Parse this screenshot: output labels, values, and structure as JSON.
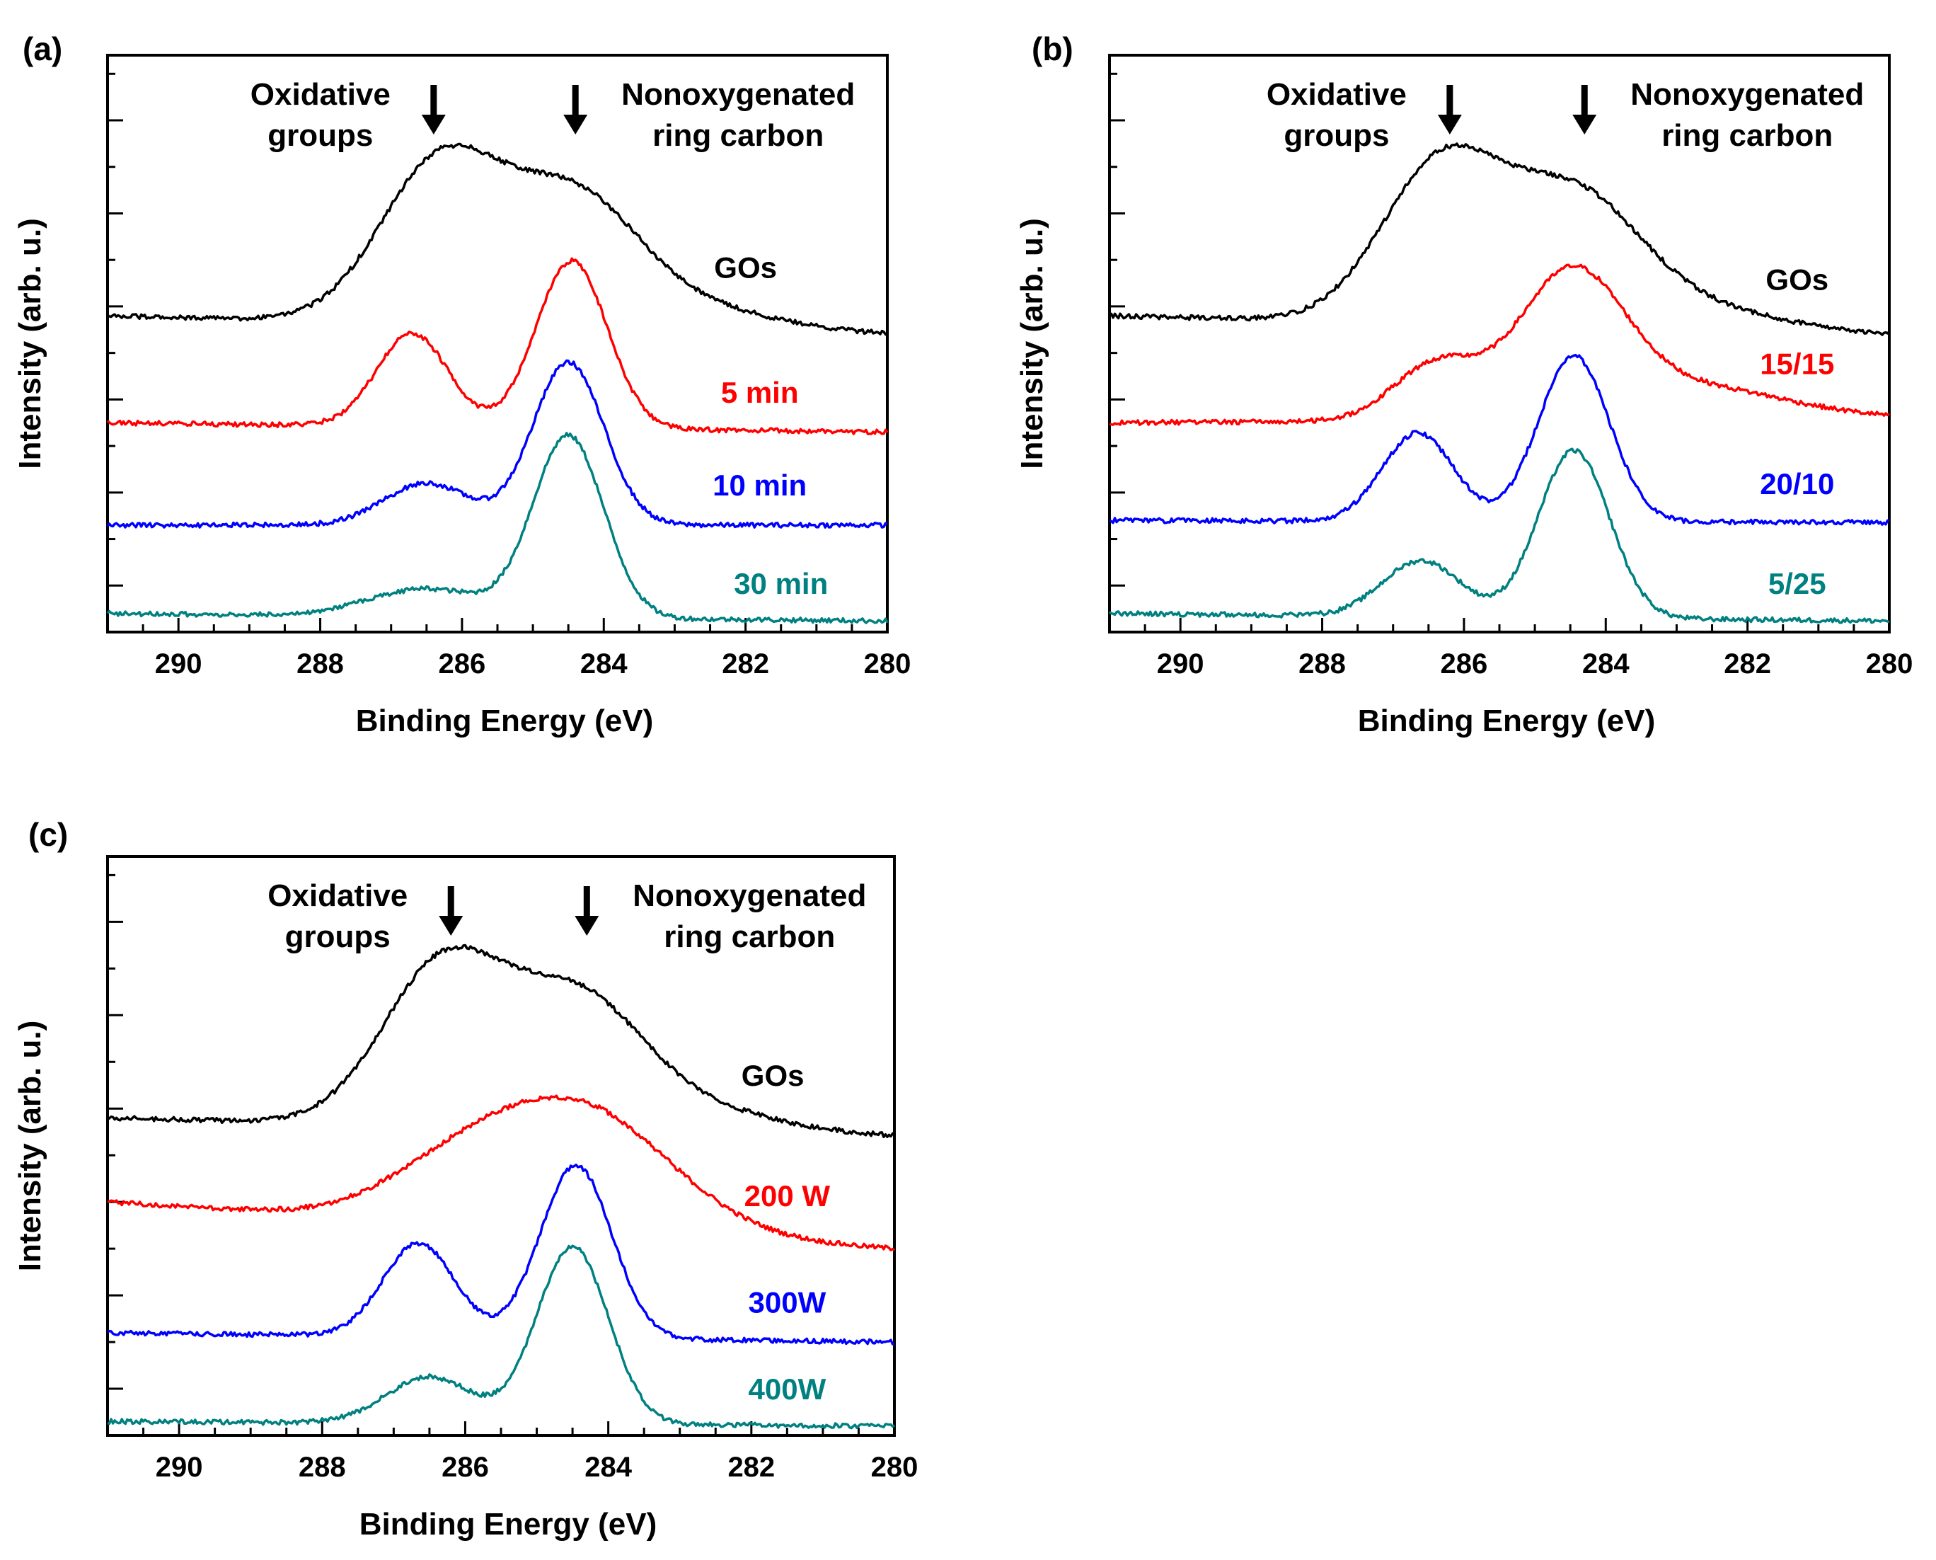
{
  "chart_data": [
    {
      "panel": "(a)",
      "type": "line",
      "xlabel": "Binding Energy (eV)",
      "ylabel": "Intensity (arb. u.)",
      "xlim": [
        291,
        280
      ],
      "xticks": [
        290,
        288,
        286,
        284,
        282,
        280
      ],
      "ylim": [
        0,
        6.2
      ],
      "annotations": [
        {
          "text": [
            "Oxidative",
            "groups"
          ],
          "arrow_x": 286.4
        },
        {
          "text": [
            "Nonoxygenated",
            "ring carbon"
          ],
          "arrow_x": 284.4
        }
      ],
      "series": [
        {
          "name": "GOs",
          "color": "#000000",
          "baseline": 3.4,
          "end": 3.2,
          "peaks": [
            [
              286.3,
              1.72,
              0.85
            ],
            [
              284.45,
              1.3,
              0.9
            ],
            [
              282.9,
              0.25,
              1.2
            ]
          ],
          "label_x": 282.0,
          "label_dy": 0.35
        },
        {
          "name": "5 min",
          "color": "#ff0000",
          "baseline": 2.25,
          "end": 2.15,
          "peaks": [
            [
              286.7,
              1.0,
              0.5
            ],
            [
              284.45,
              1.8,
              0.5
            ]
          ],
          "label_x": 281.8,
          "label_dy": 0.3
        },
        {
          "name": "10 min",
          "color": "#0000ff",
          "baseline": 1.15,
          "end": 1.15,
          "peaks": [
            [
              286.5,
              0.45,
              0.6
            ],
            [
              284.5,
              1.75,
              0.5
            ]
          ],
          "label_x": 281.8,
          "label_dy": 0.32
        },
        {
          "name": "30 min",
          "color": "#008080",
          "baseline": 0.2,
          "end": 0.12,
          "peaks": [
            [
              286.5,
              0.3,
              0.8
            ],
            [
              284.5,
              1.95,
              0.5
            ]
          ],
          "label_x": 281.5,
          "label_dy": 0.28
        }
      ]
    },
    {
      "panel": "(b)",
      "type": "line",
      "xlabel": "Binding Energy (eV)",
      "ylabel": "Intensity (arb. u.)",
      "xlim": [
        291,
        280
      ],
      "xticks": [
        290,
        288,
        286,
        284,
        282,
        280
      ],
      "ylim": [
        0,
        6.2
      ],
      "annotations": [
        {
          "text": [
            "Oxidative",
            "groups"
          ],
          "arrow_x": 286.2
        },
        {
          "text": [
            "Nonoxygenated",
            "ring carbon"
          ],
          "arrow_x": 284.3
        }
      ],
      "series": [
        {
          "name": "GOs",
          "color": "#000000",
          "baseline": 3.4,
          "end": 3.2,
          "peaks": [
            [
              286.3,
              1.72,
              0.85
            ],
            [
              284.45,
              1.3,
              0.9
            ],
            [
              282.9,
              0.25,
              1.2
            ]
          ],
          "label_x": 281.3,
          "label_dy": 0.35
        },
        {
          "name": "15/15",
          "color": "#ff0000",
          "baseline": 2.25,
          "end": 2.3,
          "peaks": [
            [
              286.4,
              0.6,
              0.6
            ],
            [
              284.5,
              1.5,
              0.75
            ],
            [
              282.8,
              0.35,
              1.3
            ]
          ],
          "label_x": 281.3,
          "label_dy": 0.3
        },
        {
          "name": "20/10",
          "color": "#0000ff",
          "baseline": 1.2,
          "end": 1.18,
          "peaks": [
            [
              286.65,
              0.95,
              0.5
            ],
            [
              284.45,
              1.78,
              0.5
            ]
          ],
          "label_x": 281.3,
          "label_dy": 0.3
        },
        {
          "name": "5/25",
          "color": "#008080",
          "baseline": 0.2,
          "end": 0.12,
          "peaks": [
            [
              286.6,
              0.6,
              0.55
            ],
            [
              284.45,
              1.8,
              0.5
            ]
          ],
          "label_x": 281.3,
          "label_dy": 0.28
        }
      ]
    },
    {
      "panel": "(c)",
      "type": "line",
      "xlabel": "Binding Energy (eV)",
      "ylabel": "Intensity (arb. u.)",
      "xlim": [
        291,
        280
      ],
      "xticks": [
        290,
        288,
        286,
        284,
        282,
        280
      ],
      "ylim": [
        0,
        6.2
      ],
      "annotations": [
        {
          "text": [
            "Oxidative",
            "groups"
          ],
          "arrow_x": 286.2
        },
        {
          "text": [
            "Nonoxygenated",
            "ring carbon"
          ],
          "arrow_x": 284.3
        }
      ],
      "series": [
        {
          "name": "GOs",
          "color": "#000000",
          "baseline": 3.4,
          "end": 3.2,
          "peaks": [
            [
              286.3,
              1.72,
              0.85
            ],
            [
              284.45,
              1.3,
              0.9
            ],
            [
              282.9,
              0.25,
              1.2
            ]
          ],
          "label_x": 281.7,
          "label_dy": 0.35
        },
        {
          "name": "200 W",
          "color": "#ff0000",
          "baseline": 2.5,
          "end": 2.0,
          "peaks": [
            [
              286.2,
              0.45,
              1.0
            ],
            [
              284.4,
              1.3,
              1.25
            ]
          ],
          "label_x": 281.5,
          "label_dy": 0.3
        },
        {
          "name": "300W",
          "color": "#0000ff",
          "baseline": 1.1,
          "end": 1.0,
          "peaks": [
            [
              286.65,
              1.0,
              0.5
            ],
            [
              284.45,
              1.85,
              0.5
            ]
          ],
          "label_x": 281.5,
          "label_dy": 0.3
        },
        {
          "name": "400W",
          "color": "#008080",
          "baseline": 0.15,
          "end": 0.1,
          "peaks": [
            [
              286.5,
              0.5,
              0.6
            ],
            [
              284.5,
              1.9,
              0.5
            ]
          ],
          "label_x": 281.5,
          "label_dy": 0.28
        }
      ]
    }
  ]
}
